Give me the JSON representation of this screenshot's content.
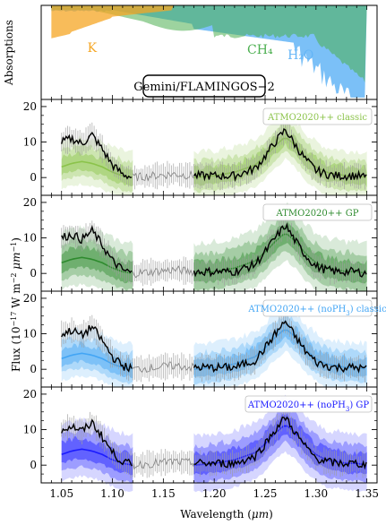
{
  "chart_data": [
    {
      "type": "area",
      "panel": "absorptions",
      "ylabel": "Absorptions",
      "instrument_label": "Gemini/FLAMINGOS−2",
      "xlim": [
        1.03,
        1.36
      ],
      "species": [
        {
          "name": "K",
          "color": "#f5a623",
          "label_x": 1.08
        },
        {
          "name": "CH₄",
          "color": "#4caf50",
          "label_x": 1.245
        },
        {
          "name": "H₂O",
          "color": "#64b5f6",
          "label_x": 1.285
        }
      ]
    },
    {
      "type": "line",
      "panel": "ATMO2020++ classic",
      "legend": "ATMO2020++ classic",
      "color": "#8bc34a",
      "ylim": [
        -5,
        22
      ],
      "yticks": [
        0,
        10,
        20
      ]
    },
    {
      "type": "line",
      "panel": "ATMO2020++ GP",
      "legend": "ATMO2020++ GP",
      "color": "#2e8b2e",
      "ylim": [
        -5,
        22
      ],
      "yticks": [
        0,
        10,
        20
      ]
    },
    {
      "type": "line",
      "panel": "ATMO2020++ (noPH3) classic",
      "legend_parts": [
        "ATMO2020++ (noPH",
        "3",
        ") classic"
      ],
      "color": "#42a5f5",
      "ylim": [
        -5,
        22
      ],
      "yticks": [
        0,
        10,
        20
      ]
    },
    {
      "type": "line",
      "panel": "ATMO2020++ (noPH3) GP",
      "legend_parts": [
        "ATMO2020++ (noPH",
        "3",
        ") GP"
      ],
      "color": "#1a1aff",
      "ylim": [
        -5,
        22
      ],
      "yticks": [
        0,
        10,
        20
      ]
    }
  ],
  "shared": {
    "xlabel_parts": [
      "Wavelength (",
      "μm",
      ")"
    ],
    "ylabel_parts": [
      "Flux (10",
      "−17",
      " W m",
      "−2",
      " μm",
      "−1",
      ")"
    ],
    "xticks": [
      1.05,
      1.1,
      1.15,
      1.2,
      1.25,
      1.3,
      1.35
    ],
    "xtick_labels": [
      "1.05",
      "1.10",
      "1.15",
      "1.20",
      "1.25",
      "1.30",
      "1.35"
    ],
    "ytick_labels": [
      "0",
      "10",
      "20"
    ],
    "gap_wavelengths": [
      1.12,
      1.18
    ],
    "observed_series": {
      "name": "observed",
      "color": "#000000",
      "x": [
        1.05,
        1.06,
        1.07,
        1.08,
        1.09,
        1.1,
        1.11,
        1.12,
        1.14,
        1.16,
        1.18,
        1.2,
        1.22,
        1.24,
        1.25,
        1.26,
        1.27,
        1.28,
        1.29,
        1.3,
        1.31,
        1.32,
        1.33,
        1.34,
        1.35
      ],
      "y": [
        10,
        11,
        9.5,
        12,
        8,
        3.5,
        1,
        0,
        0.5,
        1,
        0.5,
        0.5,
        0.5,
        2.5,
        6,
        10,
        13.5,
        9,
        5,
        2,
        1,
        0.5,
        0.5,
        0.5,
        0
      ]
    },
    "model_series": {
      "x": [
        1.05,
        1.06,
        1.07,
        1.08,
        1.09,
        1.1,
        1.11,
        1.12,
        1.18,
        1.2,
        1.22,
        1.24,
        1.25,
        1.26,
        1.27,
        1.28,
        1.29,
        1.3,
        1.31,
        1.32,
        1.33,
        1.34,
        1.35
      ],
      "y": [
        3,
        4,
        4.5,
        4,
        3,
        1.5,
        0.5,
        0,
        0,
        0.5,
        1.5,
        3.5,
        6,
        9,
        11.5,
        9,
        5.5,
        3,
        1.5,
        1,
        0.5,
        0.5,
        0
      ]
    }
  }
}
